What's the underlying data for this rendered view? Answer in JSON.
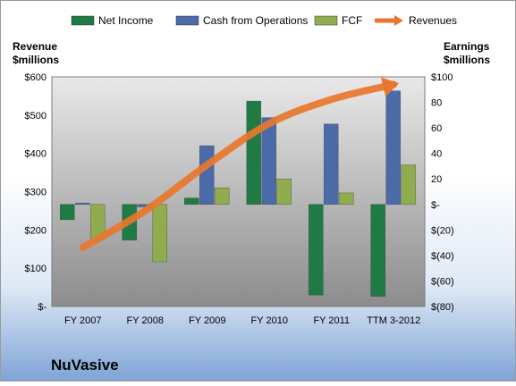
{
  "chart_data": {
    "type": "bar",
    "title": "NuVasive",
    "categories": [
      "FY 2007",
      "FY 2008",
      "FY 2009",
      "FY 2010",
      "FY 2011",
      "TTM 3-2012"
    ],
    "left_axis": {
      "label_line1": "Revenue",
      "label_line2": "$millions",
      "range": [
        0,
        600
      ],
      "ticks": [
        0,
        100,
        200,
        300,
        400,
        500,
        600
      ],
      "tick_labels": [
        "$-",
        "$100",
        "$200",
        "$300",
        "$400",
        "$500",
        "$600"
      ]
    },
    "right_axis": {
      "label_line1": "Earnings",
      "label_line2": "$millions",
      "range": [
        -80,
        100
      ],
      "ticks": [
        -80,
        -60,
        -40,
        -20,
        0,
        20,
        40,
        60,
        80,
        100
      ],
      "tick_labels": [
        "$(80)",
        "$(60)",
        "$(40)",
        "$(20)",
        "$-",
        "20",
        "40",
        "60",
        "80",
        "$100"
      ]
    },
    "series": [
      {
        "name": "Net Income",
        "axis": "right",
        "color": "#1f7a44",
        "values": [
          -12,
          -28,
          5,
          81,
          -71,
          -72
        ]
      },
      {
        "name": "Cash from Operations",
        "axis": "right",
        "color": "#4a6aa8",
        "values": [
          1,
          -2,
          46,
          68,
          63,
          89
        ]
      },
      {
        "name": "FCF",
        "axis": "right",
        "color": "#8fac4e",
        "values": [
          -27,
          -45,
          13,
          20,
          9,
          31
        ]
      },
      {
        "name": "Revenues",
        "axis": "left",
        "type": "line",
        "color": "#e8772e",
        "values": [
          154,
          250,
          370,
          478,
          541,
          580
        ]
      }
    ],
    "legend_position": "top",
    "grid": false
  }
}
